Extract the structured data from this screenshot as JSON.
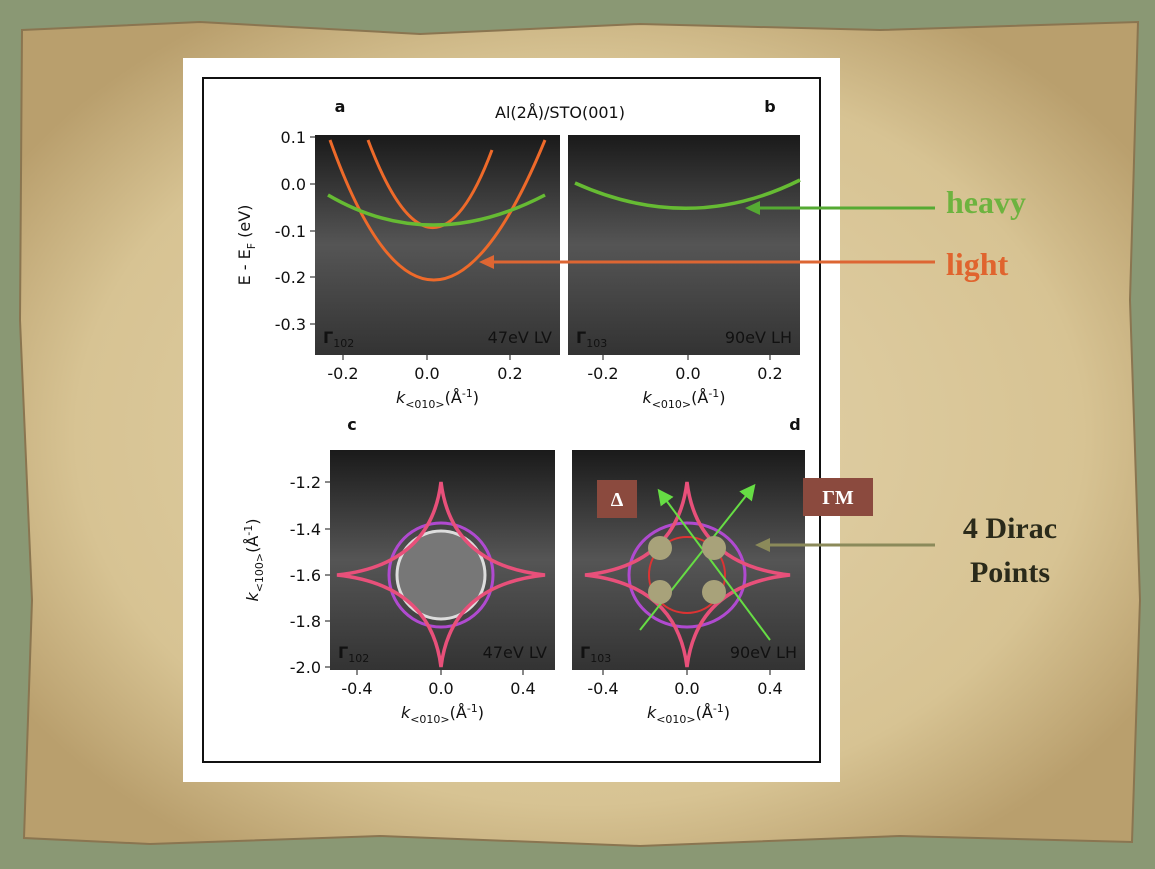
{
  "figure": {
    "title": "Al(2Å)/STO(001)",
    "panels": [
      {
        "letter": "a",
        "corner_left": {
          "symbol": "Γ",
          "sub": "102"
        },
        "corner_right": "47eV LV",
        "xticks": [
          "-0.2",
          "0.0",
          "0.2"
        ],
        "yticks": [
          "0.1",
          "0.0",
          "-0.1",
          "-0.2",
          "-0.3"
        ]
      },
      {
        "letter": "b",
        "corner_left": {
          "symbol": "Γ",
          "sub": "103"
        },
        "corner_right": "90eV LH",
        "xticks": [
          "-0.2",
          "0.0",
          "0.2"
        ]
      },
      {
        "letter": "c",
        "corner_left": {
          "symbol": "Γ",
          "sub": "102"
        },
        "corner_right": "47eV LV",
        "xticks": [
          "-0.4",
          "0.0",
          "0.4"
        ],
        "yticks": [
          "-1.2",
          "-1.4",
          "-1.6",
          "-1.8",
          "-2.0"
        ]
      },
      {
        "letter": "d",
        "corner_left": {
          "symbol": "Γ",
          "sub": "103"
        },
        "corner_right": "90eV LH",
        "xticks": [
          "-0.4",
          "0.0",
          "0.4"
        ]
      }
    ],
    "y_label_top": {
      "base": "E - E",
      "sub": "F",
      "tail": " (eV)"
    },
    "y_label_bottom": {
      "base": "k",
      "sub": "<100>",
      "tail": "(Å",
      "sup": "-1",
      "end": ")"
    },
    "x_label": {
      "base": "k",
      "sub": "<010>",
      "tail": "(Å",
      "sup": "-1",
      "end": ")"
    }
  },
  "annotations": {
    "heavy": "heavy",
    "light": "light",
    "dirac": [
      "4 Dirac",
      "Points"
    ],
    "delta": "Δ",
    "gamma_m": "ΓM"
  }
}
